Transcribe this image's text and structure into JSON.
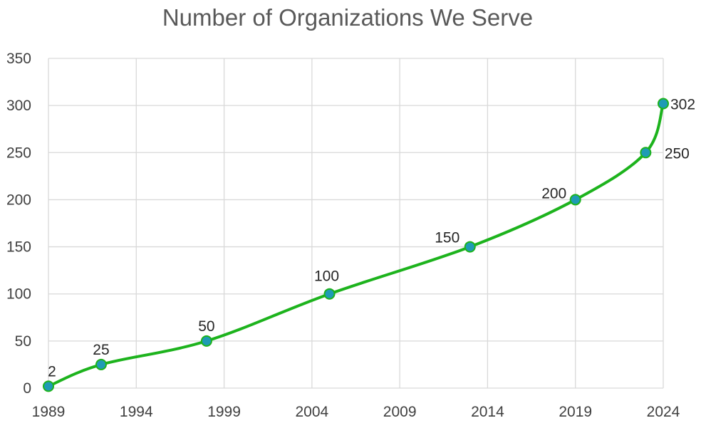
{
  "chart_data": {
    "type": "line",
    "title": "Number of Organizations We Serve",
    "xlabel": "",
    "ylabel": "",
    "xlim": [
      1989,
      2024
    ],
    "ylim": [
      0,
      350
    ],
    "x_ticks": [
      "1989",
      "1994",
      "1999",
      "2004",
      "2009",
      "2014",
      "2019",
      "2024"
    ],
    "y_ticks": [
      "0",
      "50",
      "100",
      "150",
      "200",
      "250",
      "300",
      "350"
    ],
    "grid": true,
    "legend": "none",
    "smooth": true,
    "series": [
      {
        "color": "#1db31d",
        "marker_color": "#1f9bb5",
        "points": [
          {
            "x": 1989,
            "y": 2,
            "label": "2"
          },
          {
            "x": 1992,
            "y": 25,
            "label": "25"
          },
          {
            "x": 1998,
            "y": 50,
            "label": "50"
          },
          {
            "x": 2005,
            "y": 100,
            "label": "100"
          },
          {
            "x": 2013,
            "y": 150,
            "label": "150"
          },
          {
            "x": 2019,
            "y": 200,
            "label": "200"
          },
          {
            "x": 2023,
            "y": 250,
            "label": "250"
          },
          {
            "x": 2024,
            "y": 302,
            "label": "302"
          }
        ]
      }
    ]
  }
}
